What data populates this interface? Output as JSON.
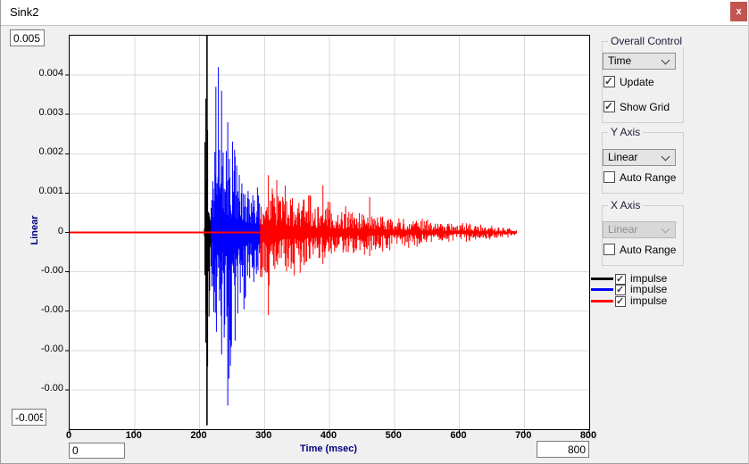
{
  "window": {
    "title": "Sink2",
    "close_label": "x",
    "close_color": "#c25550"
  },
  "plot": {
    "y_top_box": "0.005",
    "y_bottom_box": "-0.005",
    "x_min_box": "0",
    "x_max_box": "800",
    "y_axis_label": "Linear",
    "x_axis_label": "Time (msec)",
    "axis_label_color": "#000080",
    "grid_color": "#d9d9d9"
  },
  "chart_data": {
    "type": "line",
    "title": "",
    "xlabel": "Time (msec)",
    "ylabel": "Linear",
    "xlim": [
      0,
      800
    ],
    "ylim": [
      -0.005,
      0.005
    ],
    "grid": true,
    "legend_position": "right",
    "x_ticks": [
      {
        "v": 0,
        "label": "0"
      },
      {
        "v": 100,
        "label": "100"
      },
      {
        "v": 200,
        "label": "200"
      },
      {
        "v": 300,
        "label": "300"
      },
      {
        "v": 400,
        "label": "400"
      },
      {
        "v": 500,
        "label": "500"
      },
      {
        "v": 600,
        "label": "600"
      },
      {
        "v": 700,
        "label": "700"
      },
      {
        "v": 800,
        "label": "800"
      }
    ],
    "y_ticks": [
      {
        "v": 0.004,
        "label": "0.004"
      },
      {
        "v": 0.003,
        "label": "0.003"
      },
      {
        "v": 0.002,
        "label": "0.002"
      },
      {
        "v": 0.001,
        "label": "0.001"
      },
      {
        "v": 0,
        "label": "0"
      },
      {
        "v": -0.001,
        "label": "-0.00"
      },
      {
        "v": -0.002,
        "label": "-0.00"
      },
      {
        "v": -0.003,
        "label": "-0.00"
      },
      {
        "v": -0.004,
        "label": "-0.00"
      }
    ],
    "series": [
      {
        "name": "impulse",
        "color": "#000000",
        "seed": 7,
        "step": 0.8,
        "impulse_line": {
          "t": 211.5,
          "top": 0.005,
          "bottom": -0.0049
        },
        "envelope": [
          [
            207.5,
            0.0007,
            0.0006
          ],
          [
            209,
            0.0033,
            0.0027
          ],
          [
            211,
            0.0026,
            0.0032
          ],
          [
            214,
            0.0019,
            0.0021
          ],
          [
            218,
            0.0013,
            0.0012
          ]
        ],
        "peaks": [
          {
            "t": 209.5,
            "up": 0.0034,
            "down": 0.0028
          },
          {
            "t": 212.5,
            "up": 0.0026,
            "down": 0.0034
          }
        ]
      },
      {
        "name": "impulse",
        "color": "#0000ff",
        "seed": 12,
        "step": 0.8,
        "envelope": [
          [
            218,
            0.0014,
            0.0013
          ],
          [
            224,
            0.0031,
            0.0027
          ],
          [
            229,
            0.0042,
            0.0033
          ],
          [
            236,
            0.0032,
            0.0029
          ],
          [
            243,
            0.0029,
            0.0043
          ],
          [
            251,
            0.0024,
            0.0031
          ],
          [
            261,
            0.0019,
            0.0025
          ],
          [
            271,
            0.0016,
            0.0019
          ],
          [
            282,
            0.0013,
            0.0015
          ],
          [
            294,
            0.0012,
            0.0012
          ]
        ],
        "peaks": [
          {
            "t": 229,
            "up": 0.0042,
            "down": 0.0006
          },
          {
            "t": 234,
            "up": 0.0036,
            "down": 0.0031
          },
          {
            "t": 243.5,
            "up": 0.0028,
            "down": 0.0044
          }
        ]
      },
      {
        "name": "impulse",
        "color": "#ff0000",
        "seed": 99,
        "step": 1.0,
        "baseline": {
          "t0": 0,
          "t1": 688,
          "y": 0
        },
        "envelope": [
          [
            294,
            0.0014,
            0.0015
          ],
          [
            310,
            0.0013,
            0.0014
          ],
          [
            330,
            0.0011,
            0.0011
          ],
          [
            360,
            0.0009,
            0.0009
          ],
          [
            400,
            0.0007,
            0.0007
          ],
          [
            440,
            0.00055,
            0.00055
          ],
          [
            490,
            0.00042,
            0.00042
          ],
          [
            540,
            0.00032,
            0.00032
          ],
          [
            590,
            0.00024,
            0.00024
          ],
          [
            640,
            0.00017,
            0.00017
          ],
          [
            688,
            0.0001,
            0.0001
          ]
        ],
        "peaks": [
          {
            "t": 306,
            "up": 0.0014,
            "down": 0.0021
          },
          {
            "t": 390,
            "up": 0.0012,
            "down": 0.0008
          },
          {
            "t": 462,
            "up": 0.0009,
            "down": 0.0006
          }
        ]
      }
    ]
  },
  "controls": {
    "overall": {
      "title": "Overall Control",
      "dropdown_value": "Time",
      "checkboxes": [
        {
          "label": "Update",
          "checked": true
        },
        {
          "label": "Show Grid",
          "checked": true
        }
      ]
    },
    "y_axis": {
      "title": "Y Axis",
      "dropdown_value": "Linear",
      "dropdown_disabled": false,
      "auto_range": {
        "label": "Auto Range",
        "checked": false
      }
    },
    "x_axis": {
      "title": "X Axis",
      "dropdown_value": "Linear",
      "dropdown_disabled": true,
      "auto_range": {
        "label": "Auto Range",
        "checked": false
      }
    }
  },
  "legend": {
    "items": [
      {
        "label": "impulse",
        "color": "#000000",
        "checked": true
      },
      {
        "label": "impulse",
        "color": "#0000ff",
        "checked": true
      },
      {
        "label": "impulse",
        "color": "#ff0000",
        "checked": true
      }
    ]
  }
}
